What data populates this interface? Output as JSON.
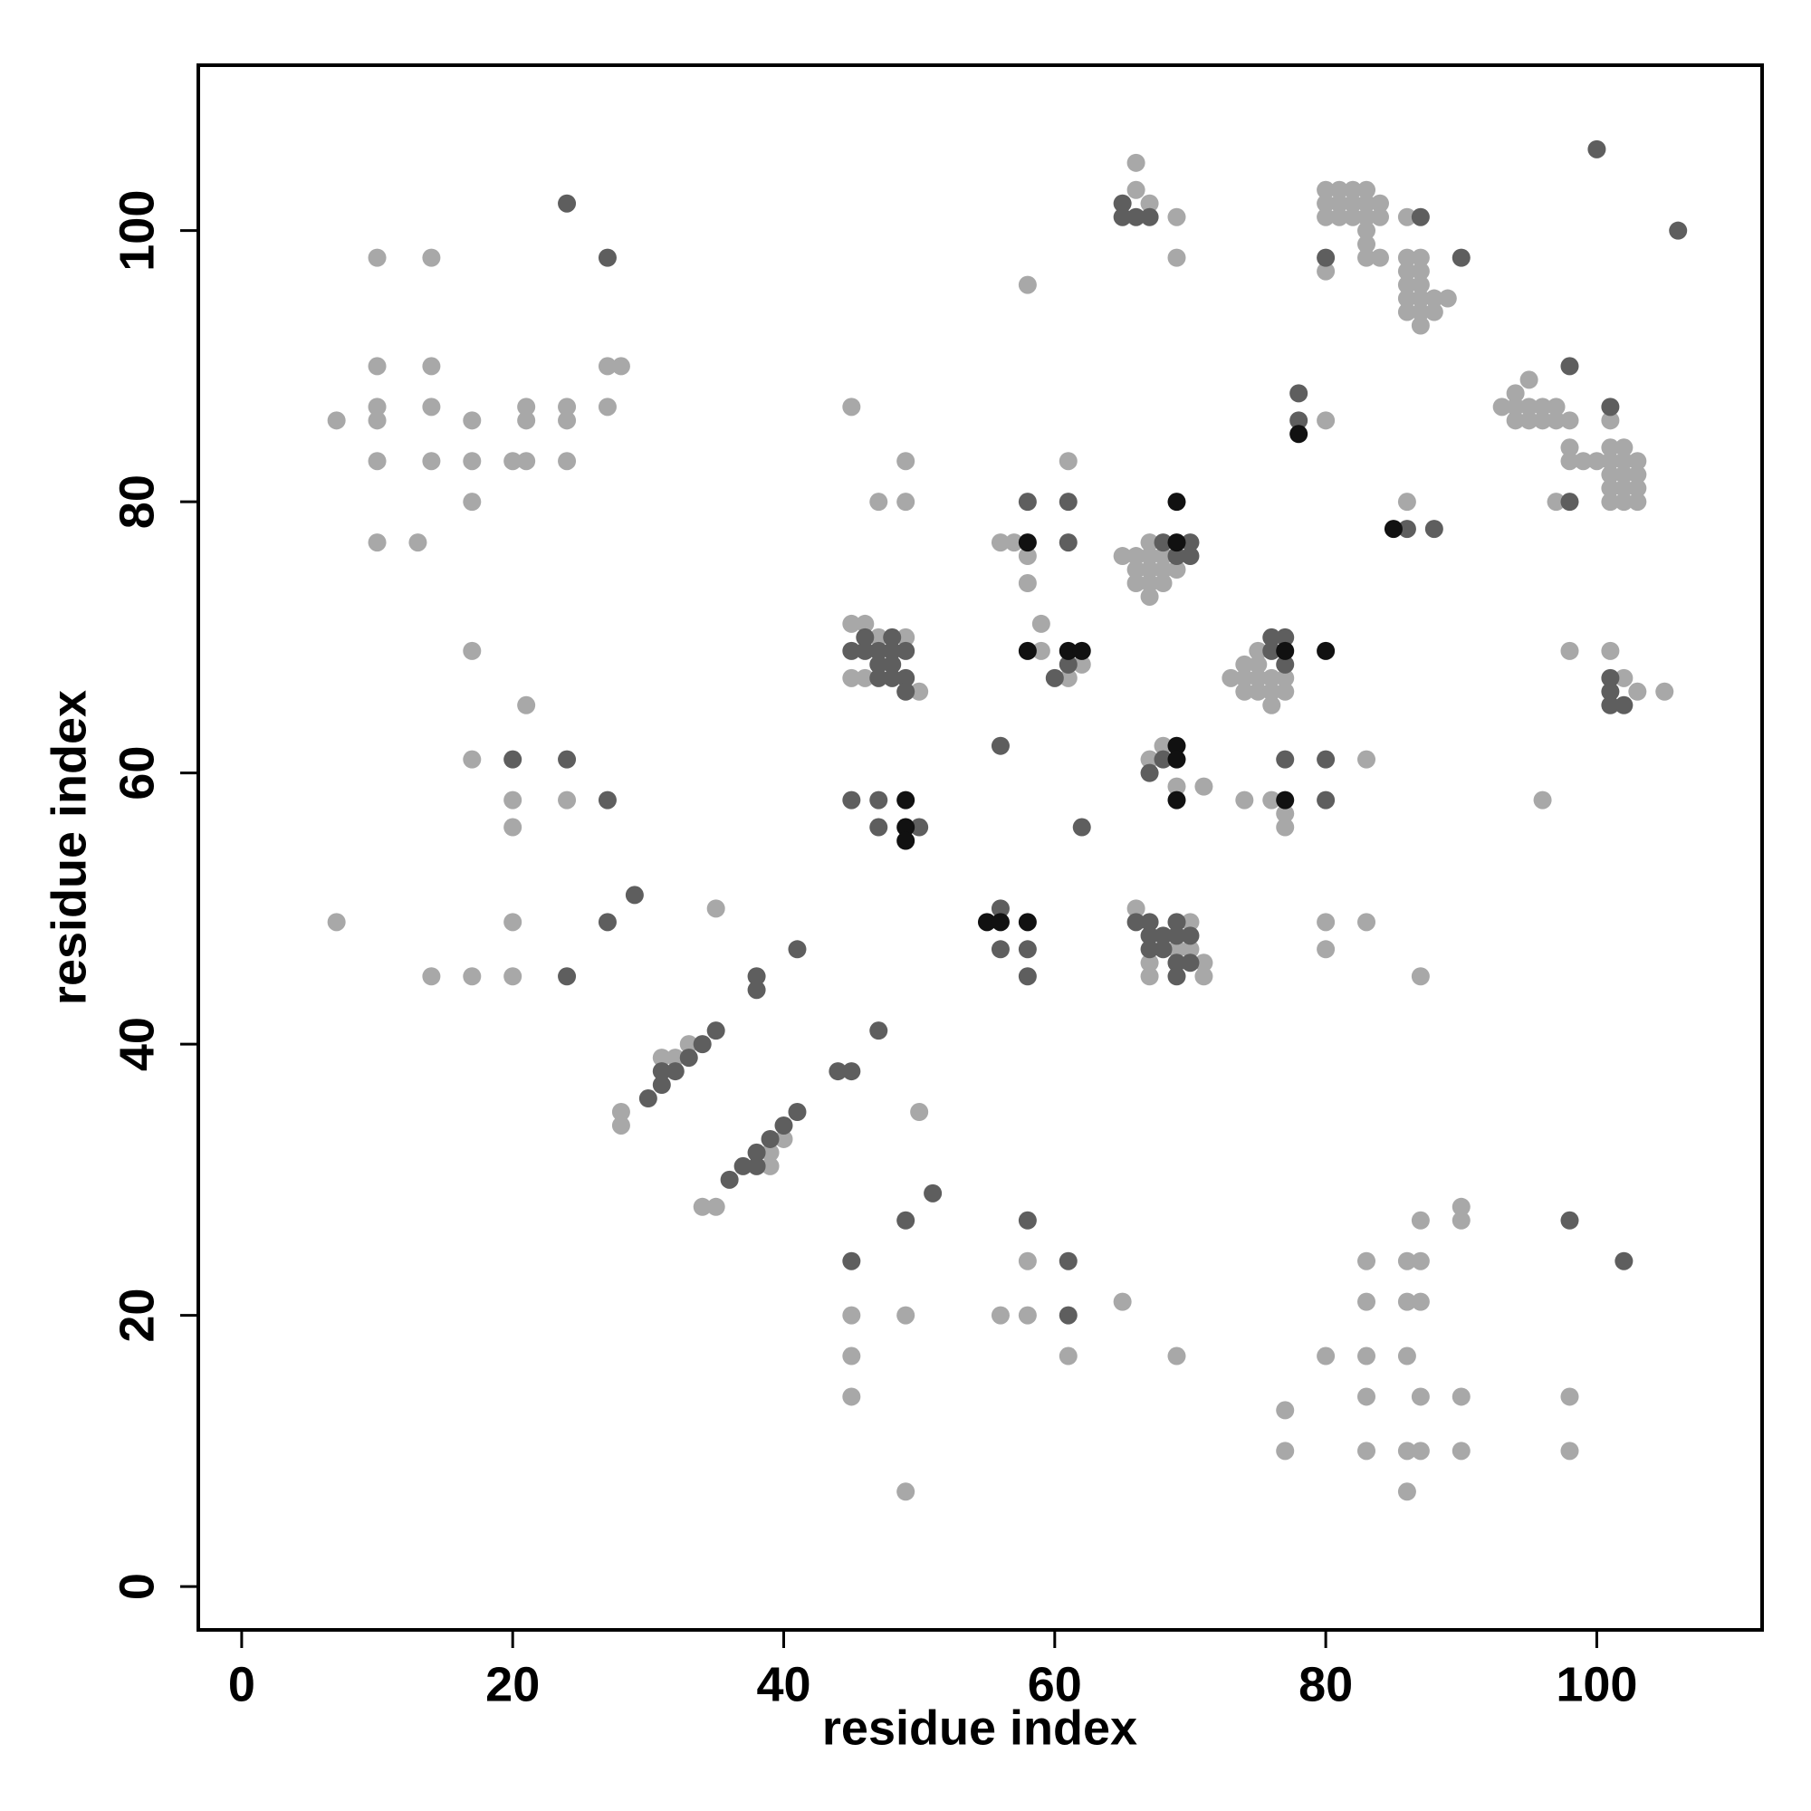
{
  "chart_data": {
    "type": "scatter",
    "xlabel": "residue index",
    "ylabel": "residue index",
    "xlim": [
      -3.2,
      112.2
    ],
    "ylim": [
      -3.2,
      112.2
    ],
    "xticks": [
      0,
      20,
      40,
      60,
      80,
      100
    ],
    "yticks": [
      0,
      20,
      40,
      60,
      80,
      100
    ],
    "grid": false,
    "series": [
      {
        "color": "#a8a8a8",
        "x": [
          7,
          10,
          10,
          10,
          10,
          10,
          10,
          13,
          14,
          14,
          14,
          14,
          17,
          17,
          17,
          20,
          21,
          21,
          21,
          24,
          24,
          24,
          27,
          28,
          27,
          17,
          21,
          17,
          20,
          24,
          20,
          7,
          20,
          14,
          17,
          20,
          35,
          31,
          32,
          33,
          28,
          28,
          34,
          35,
          39,
          40,
          39,
          50,
          45,
          47,
          49,
          49,
          45,
          46,
          45,
          46,
          49,
          47,
          50,
          58,
          57,
          56,
          58,
          58,
          59,
          59,
          61,
          61,
          62,
          66,
          66,
          67,
          69,
          69,
          65,
          66,
          66,
          66,
          67,
          67,
          67,
          67,
          67,
          68,
          68,
          68,
          69,
          68,
          67,
          69,
          71,
          66,
          67,
          67,
          69,
          69,
          70,
          71,
          71,
          70,
          73,
          74,
          74,
          74,
          75,
          75,
          75,
          75,
          76,
          76,
          76,
          77,
          77,
          77,
          77,
          74,
          76,
          80,
          80,
          80,
          81,
          82,
          83,
          80,
          81,
          82,
          83,
          84,
          80,
          81,
          82,
          83,
          84,
          83,
          83,
          83,
          84,
          86,
          86,
          87,
          86,
          87,
          86,
          87,
          86,
          87,
          88,
          89,
          86,
          87,
          88,
          87,
          86,
          93,
          94,
          94,
          94,
          95,
          95,
          95,
          96,
          96,
          97,
          97,
          98,
          98,
          98,
          99,
          100,
          101,
          101,
          101,
          101,
          101,
          102,
          102,
          102,
          102,
          102,
          103,
          103,
          103,
          103,
          97,
          101,
          98,
          101,
          102,
          103,
          105,
          96,
          83,
          80,
          80,
          83,
          87,
          45,
          45,
          45,
          49,
          49,
          58,
          58,
          56,
          61,
          65,
          69,
          77,
          77,
          80,
          83,
          83,
          83,
          83,
          83,
          86,
          87,
          86,
          87,
          86,
          87,
          86,
          87,
          86,
          87,
          90,
          90,
          90,
          90,
          98,
          98
        ],
        "y": [
          86,
          98,
          90,
          87,
          86,
          83,
          77,
          77,
          98,
          90,
          87,
          83,
          86,
          83,
          80,
          83,
          83,
          87,
          86,
          87,
          86,
          83,
          90,
          90,
          87,
          69,
          65,
          61,
          58,
          58,
          56,
          49,
          49,
          45,
          45,
          45,
          50,
          39,
          39,
          40,
          35,
          34,
          28,
          28,
          32,
          33,
          31,
          35,
          87,
          80,
          80,
          83,
          71,
          71,
          67,
          67,
          70,
          70,
          66,
          96,
          77,
          77,
          76,
          74,
          71,
          69,
          83,
          67,
          68,
          105,
          103,
          102,
          101,
          98,
          76,
          76,
          75,
          74,
          77,
          76,
          75,
          74,
          73,
          75,
          74,
          76,
          75,
          62,
          61,
          59,
          59,
          50,
          46,
          45,
          46,
          47,
          49,
          46,
          45,
          47,
          67,
          68,
          67,
          66,
          69,
          68,
          67,
          66,
          66,
          67,
          65,
          67,
          66,
          57,
          56,
          58,
          58,
          86,
          97,
          103,
          103,
          103,
          103,
          102,
          102,
          102,
          102,
          102,
          101,
          101,
          101,
          101,
          101,
          100,
          99,
          98,
          98,
          101,
          98,
          98,
          97,
          97,
          96,
          96,
          95,
          95,
          95,
          95,
          94,
          94,
          94,
          93,
          80,
          87,
          88,
          87,
          86,
          89,
          87,
          86,
          87,
          86,
          87,
          86,
          86,
          84,
          83,
          83,
          83,
          84,
          83,
          82,
          81,
          80,
          84,
          83,
          82,
          81,
          80,
          83,
          82,
          81,
          80,
          80,
          86,
          69,
          69,
          67,
          66,
          66,
          58,
          61,
          49,
          47,
          49,
          45,
          20,
          17,
          14,
          20,
          7,
          24,
          20,
          20,
          17,
          21,
          17,
          13,
          10,
          17,
          24,
          21,
          17,
          14,
          10,
          24,
          24,
          21,
          21,
          17,
          14,
          10,
          10,
          7,
          27,
          28,
          27,
          14,
          10,
          14,
          10
        ]
      },
      {
        "color": "#5e5e5e",
        "x": [
          24,
          27,
          20,
          24,
          27,
          27,
          29,
          24,
          30,
          31,
          32,
          31,
          33,
          34,
          35,
          36,
          37,
          38,
          38,
          39,
          40,
          41,
          38,
          38,
          41,
          44,
          45,
          47,
          49,
          51,
          45,
          45,
          46,
          46,
          47,
          47,
          48,
          48,
          48,
          47,
          48,
          49,
          49,
          49,
          45,
          47,
          47,
          50,
          56,
          56,
          56,
          58,
          58,
          58,
          61,
          61,
          60,
          61,
          62,
          58,
          61,
          61,
          65,
          65,
          66,
          67,
          68,
          70,
          70,
          69,
          68,
          67,
          66,
          67,
          67,
          68,
          68,
          69,
          69,
          69,
          70,
          70,
          67,
          69,
          76,
          76,
          77,
          77,
          77,
          80,
          80,
          78,
          78,
          80,
          87,
          90,
          86,
          88,
          98,
          101,
          98,
          101,
          101,
          101,
          102,
          98,
          102,
          100,
          106
        ],
        "y": [
          102,
          98,
          61,
          61,
          58,
          49,
          51,
          45,
          36,
          38,
          38,
          37,
          39,
          40,
          41,
          30,
          31,
          31,
          32,
          33,
          34,
          35,
          45,
          44,
          47,
          38,
          38,
          41,
          27,
          29,
          24,
          69,
          70,
          69,
          69,
          68,
          70,
          69,
          68,
          67,
          67,
          69,
          67,
          66,
          58,
          58,
          56,
          56,
          62,
          50,
          47,
          47,
          45,
          80,
          80,
          77,
          67,
          68,
          56,
          27,
          24,
          20,
          102,
          101,
          101,
          101,
          77,
          77,
          76,
          76,
          61,
          60,
          49,
          49,
          48,
          48,
          47,
          49,
          48,
          46,
          48,
          46,
          47,
          45,
          70,
          69,
          70,
          68,
          61,
          61,
          58,
          88,
          86,
          98,
          101,
          98,
          78,
          78,
          90,
          87,
          80,
          67,
          66,
          65,
          65,
          27,
          24,
          106,
          100
        ]
      },
      {
        "color": "#111111",
        "x": [
          58,
          69,
          69,
          58,
          61,
          62,
          69,
          69,
          69,
          49,
          49,
          49,
          55,
          56,
          58,
          77,
          77,
          80,
          78,
          85
        ],
        "y": [
          77,
          80,
          77,
          69,
          69,
          69,
          62,
          61,
          58,
          58,
          56,
          55,
          49,
          49,
          49,
          69,
          58,
          69,
          85,
          78
        ]
      }
    ]
  }
}
